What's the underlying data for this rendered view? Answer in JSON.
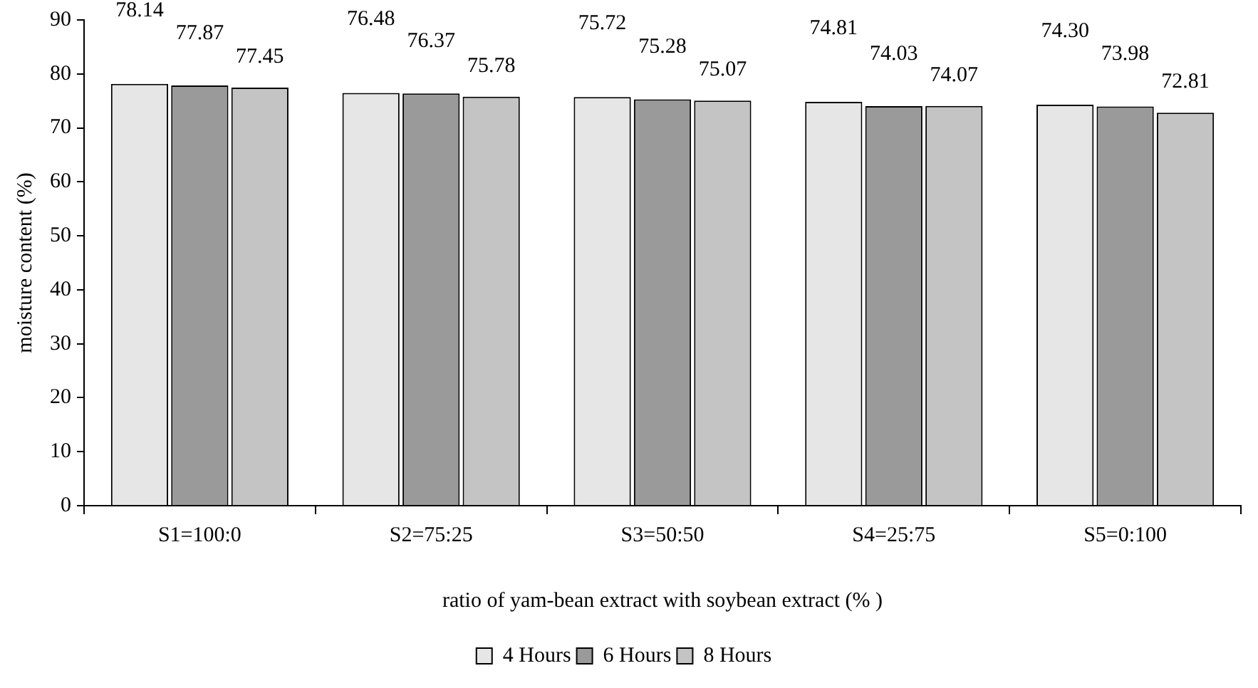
{
  "chart_data": {
    "type": "bar",
    "xlabel": "ratio of yam-bean extract with soybean extract (% )",
    "ylabel": "moisture content (%)",
    "categories": [
      "S1=100:0",
      "S2=75:25",
      "S3=50:50",
      "S4=25:75",
      "S5=0:100"
    ],
    "series": [
      {
        "name": "4 Hours",
        "color": "#e6e6e6",
        "values": [
          78.14,
          76.48,
          75.72,
          74.81,
          74.3
        ],
        "value_labels": [
          "78.14",
          "76.48",
          "75.72",
          "74.81",
          "74.30"
        ]
      },
      {
        "name": "6 Hours",
        "color": "#9a9a9a",
        "values": [
          77.87,
          76.37,
          75.28,
          74.03,
          73.98
        ],
        "value_labels": [
          "77.87",
          "76.37",
          "75.28",
          "74.03",
          "73.98"
        ]
      },
      {
        "name": "8 Hours",
        "color": "#c4c4c4",
        "values": [
          77.45,
          75.78,
          75.07,
          74.07,
          72.81
        ],
        "value_labels": [
          "77.45",
          "75.78",
          "75.07",
          "74.07",
          "72.81"
        ]
      }
    ],
    "ylim": [
      0,
      90
    ],
    "yticks": [
      0,
      10,
      20,
      30,
      40,
      50,
      60,
      70,
      80,
      90
    ],
    "grid": false,
    "legend": "bottom"
  }
}
